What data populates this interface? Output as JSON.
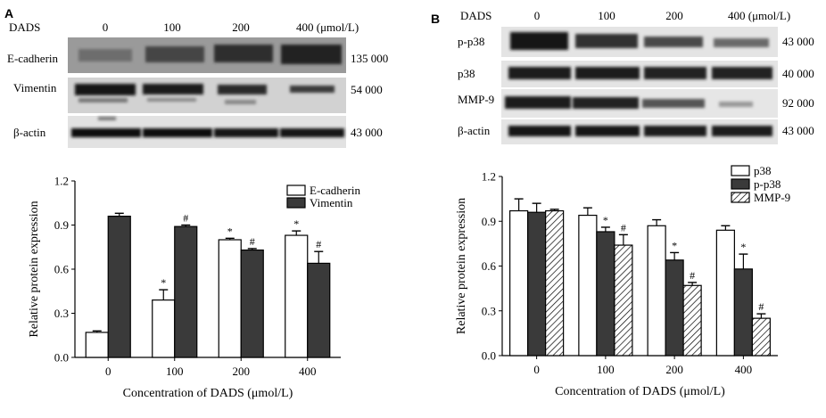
{
  "figure": {
    "panelA": {
      "letter": "A",
      "blot": {
        "dads_label": "DADS",
        "conc_labels": [
          "0",
          "100",
          "200",
          "400 (μmol/L)"
        ],
        "rows": [
          {
            "name": "E-cadherin",
            "mw": "135 000"
          },
          {
            "name": "Vimentin",
            "mw": "54 000"
          },
          {
            "name": "β-actin",
            "mw": "43 000"
          }
        ]
      }
    },
    "panelB": {
      "letter": "B",
      "blot": {
        "dads_label": "DADS",
        "conc_labels": [
          "0",
          "100",
          "200",
          "400 (μmol/L)"
        ],
        "rows": [
          {
            "name": "p-p38",
            "mw": "43 000"
          },
          {
            "name": "p38",
            "mw": "40 000"
          },
          {
            "name": "MMP-9",
            "mw": "92 000"
          },
          {
            "name": "β-actin",
            "mw": "43 000"
          }
        ]
      }
    }
  },
  "chart_data": [
    {
      "type": "bar",
      "panel": "A",
      "categories": [
        "0",
        "100",
        "200",
        "400"
      ],
      "series": [
        {
          "name": "E-cadherin",
          "values": [
            0.17,
            0.39,
            0.8,
            0.83
          ],
          "errors": [
            0.01,
            0.07,
            0.01,
            0.03
          ],
          "marks": [
            "",
            "*",
            "*",
            "*"
          ],
          "fill": "#ffffff"
        },
        {
          "name": "Vimentin",
          "values": [
            0.96,
            0.89,
            0.73,
            0.64
          ],
          "errors": [
            0.02,
            0.01,
            0.01,
            0.08
          ],
          "marks": [
            "",
            "#",
            "#",
            "#"
          ],
          "fill": "#3a3a3a"
        }
      ],
      "xlabel": "Concentration of DADS (μmol/L)",
      "ylabel": "Relative protein expression",
      "ylim": [
        0,
        1.2
      ],
      "yticks": [
        "0.0",
        "0.3",
        "0.6",
        "0.9",
        "1.2"
      ],
      "legend": "top-right"
    },
    {
      "type": "bar",
      "panel": "B",
      "categories": [
        "0",
        "100",
        "200",
        "400"
      ],
      "series": [
        {
          "name": "p38",
          "values": [
            0.97,
            0.94,
            0.87,
            0.84
          ],
          "errors": [
            0.08,
            0.05,
            0.04,
            0.03
          ],
          "marks": [
            "",
            "",
            "",
            ""
          ],
          "fill": "#ffffff"
        },
        {
          "name": "p-p38",
          "values": [
            0.96,
            0.83,
            0.64,
            0.58
          ],
          "errors": [
            0.06,
            0.03,
            0.05,
            0.1
          ],
          "marks": [
            "",
            "*",
            "*",
            "*"
          ],
          "fill": "#3a3a3a"
        },
        {
          "name": "MMP-9",
          "values": [
            0.97,
            0.74,
            0.47,
            0.25
          ],
          "errors": [
            0.01,
            0.07,
            0.02,
            0.03
          ],
          "marks": [
            "",
            "#",
            "#",
            "#"
          ],
          "fill": "hatch"
        }
      ],
      "xlabel": "Concentration of DADS (μmol/L)",
      "ylabel": "Relative protein expression",
      "ylim": [
        0,
        1.2
      ],
      "yticks": [
        "0.0",
        "0.3",
        "0.6",
        "0.9",
        "1.2"
      ],
      "legend": "top-right"
    }
  ]
}
